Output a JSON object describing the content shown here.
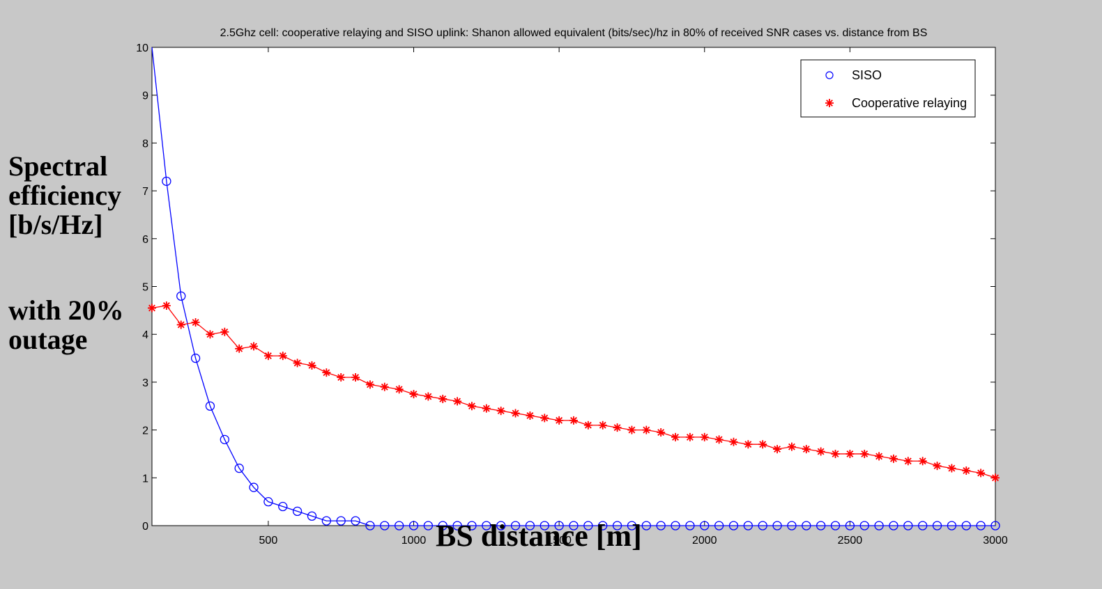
{
  "chart_data": {
    "type": "line",
    "title": "2.5Ghz cell: cooperative relaying and SISO uplink: Shanon allowed equivalent (bits/sec)/hz in 80% of received SNR cases vs. distance from BS",
    "xlabel": "BS distance [m]",
    "ylabel_lines": [
      "Spectral",
      "efficiency",
      "[b/s/Hz]"
    ],
    "ylabel_extra_lines": [
      "with 20%",
      "outage"
    ],
    "xlim": [
      100,
      3000
    ],
    "ylim": [
      0,
      10
    ],
    "xticks": [
      500,
      1000,
      1500,
      2000,
      2500,
      3000
    ],
    "xtick_labels": [
      "500",
      "1000",
      "1500",
      "2000",
      "2500",
      "3000"
    ],
    "yticks": [
      0,
      1,
      2,
      3,
      4,
      5,
      6,
      7,
      8,
      9,
      10
    ],
    "ytick_labels": [
      "0",
      "1",
      "2",
      "3",
      "4",
      "5",
      "6",
      "7",
      "8",
      "9",
      "10"
    ],
    "grid": false,
    "legend_position": "top-right",
    "legend_entries": [
      "SISO",
      "Cooperative relaying"
    ],
    "colors": {
      "siso": "#0000ff",
      "coop": "#ff0000",
      "axes": "#000000",
      "plot_bg": "#ffffff",
      "figure_bg": "#c8c8c8"
    },
    "series": [
      {
        "name": "SISO",
        "marker": "circle",
        "x": [
          150,
          200,
          250,
          300,
          350,
          400,
          450,
          500,
          550,
          600,
          650,
          700,
          750,
          800,
          850,
          900,
          950,
          1000,
          1050,
          1100,
          1150,
          1200,
          1250,
          1300,
          1350,
          1400,
          1450,
          1500,
          1550,
          1600,
          1650,
          1700,
          1750,
          1800,
          1850,
          1900,
          1950,
          2000,
          2050,
          2100,
          2150,
          2200,
          2250,
          2300,
          2350,
          2400,
          2450,
          2500,
          2550,
          2600,
          2650,
          2700,
          2750,
          2800,
          2850,
          2900,
          2950,
          3000
        ],
        "y": [
          7.2,
          4.8,
          3.5,
          2.5,
          1.8,
          1.2,
          0.8,
          0.5,
          0.4,
          0.3,
          0.2,
          0.1,
          0.1,
          0.1,
          0,
          0,
          0,
          0,
          0,
          0,
          0,
          0,
          0,
          0,
          0,
          0,
          0,
          0,
          0,
          0,
          0,
          0,
          0,
          0,
          0,
          0,
          0,
          0,
          0,
          0,
          0,
          0,
          0,
          0,
          0,
          0,
          0,
          0,
          0,
          0,
          0,
          0,
          0,
          0,
          0,
          0,
          0,
          0
        ],
        "curve_start": [
          100,
          10
        ]
      },
      {
        "name": "Cooperative relaying",
        "marker": "star",
        "x": [
          100,
          150,
          200,
          250,
          300,
          350,
          400,
          450,
          500,
          550,
          600,
          650,
          700,
          750,
          800,
          850,
          900,
          950,
          1000,
          1050,
          1100,
          1150,
          1200,
          1250,
          1300,
          1350,
          1400,
          1450,
          1500,
          1550,
          1600,
          1650,
          1700,
          1750,
          1800,
          1850,
          1900,
          1950,
          2000,
          2050,
          2100,
          2150,
          2200,
          2250,
          2300,
          2350,
          2400,
          2450,
          2500,
          2550,
          2600,
          2650,
          2700,
          2750,
          2800,
          2850,
          2900,
          2950,
          3000
        ],
        "y": [
          4.55,
          4.6,
          4.2,
          4.25,
          4.0,
          4.05,
          3.7,
          3.75,
          3.55,
          3.55,
          3.4,
          3.35,
          3.2,
          3.1,
          3.1,
          2.95,
          2.9,
          2.85,
          2.75,
          2.7,
          2.65,
          2.6,
          2.5,
          2.45,
          2.4,
          2.35,
          2.3,
          2.25,
          2.2,
          2.2,
          2.1,
          2.1,
          2.05,
          2.0,
          2.0,
          1.95,
          1.85,
          1.85,
          1.85,
          1.8,
          1.75,
          1.7,
          1.7,
          1.6,
          1.65,
          1.6,
          1.55,
          1.5,
          1.5,
          1.5,
          1.45,
          1.4,
          1.35,
          1.35,
          1.25,
          1.2,
          1.15,
          1.1,
          1.0
        ]
      }
    ]
  }
}
